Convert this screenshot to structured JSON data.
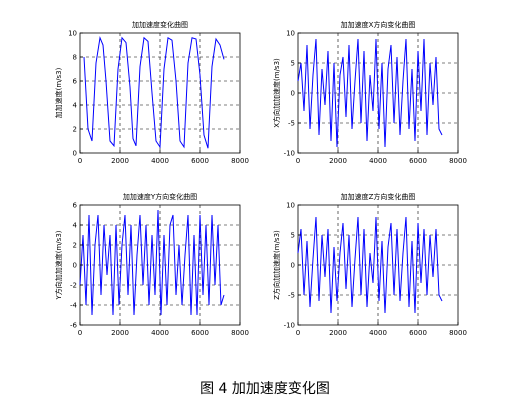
{
  "caption": "图 4 加加速度变化图",
  "chart_data": [
    {
      "type": "line",
      "title": "加加速度变化曲图",
      "xlabel": "",
      "ylabel": "加加速度(m/s3)",
      "xlim": [
        0,
        8000
      ],
      "ylim": [
        0,
        10
      ],
      "xticks": [
        0,
        2000,
        4000,
        6000,
        8000
      ],
      "yticks": [
        0,
        2,
        4,
        6,
        8,
        10
      ],
      "grid": "dashed",
      "series": [
        {
          "color": "#0000ff",
          "x": [
            200,
            400,
            600,
            800,
            1000,
            1150,
            1300,
            1500,
            1700,
            1900,
            2100,
            2300,
            2500,
            2650,
            2800,
            3000,
            3200,
            3400,
            3600,
            3800,
            4000,
            4200,
            4400,
            4600,
            4800,
            5000,
            5200,
            5400,
            5600,
            5800,
            6000,
            6200,
            6400,
            6600,
            6800,
            7000,
            7200
          ],
          "y": [
            8.0,
            2.0,
            1.0,
            7.5,
            9.6,
            9.0,
            6.0,
            1.0,
            0.6,
            7.0,
            9.6,
            9.2,
            5.5,
            1.2,
            0.6,
            7.2,
            9.6,
            9.3,
            5.0,
            1.0,
            0.5,
            7.0,
            9.6,
            9.4,
            6.0,
            1.0,
            0.5,
            7.5,
            9.6,
            9.5,
            6.5,
            1.5,
            0.4,
            7.2,
            9.5,
            9.0,
            7.8
          ]
        }
      ]
    },
    {
      "type": "line",
      "title": "加加速度X方向变化曲图",
      "xlabel": "",
      "ylabel": "X方向加加速度(m/s3)",
      "xlim": [
        0,
        8000
      ],
      "ylim": [
        -10,
        10
      ],
      "xticks": [
        0,
        2000,
        4000,
        6000,
        8000
      ],
      "yticks": [
        -10,
        -5,
        0,
        5,
        10
      ],
      "grid": "dashed",
      "series": [
        {
          "color": "#0000ff",
          "x": [
            0,
            150,
            300,
            450,
            600,
            750,
            900,
            1050,
            1200,
            1350,
            1500,
            1650,
            1800,
            1950,
            2100,
            2250,
            2400,
            2550,
            2700,
            2850,
            3000,
            3150,
            3300,
            3450,
            3600,
            3750,
            3900,
            4050,
            4200,
            4350,
            4500,
            4650,
            4800,
            4950,
            5100,
            5250,
            5400,
            5550,
            5700,
            5850,
            6000,
            6150,
            6300,
            6450,
            6600,
            6750,
            6900,
            7050,
            7200
          ],
          "y": [
            2,
            5,
            -3,
            8,
            -6,
            3,
            9,
            -7,
            4,
            -2,
            7,
            -8,
            5,
            -9,
            3,
            6,
            -4,
            8,
            -6,
            2,
            9,
            -5,
            7,
            -8,
            3,
            -3,
            9,
            -6,
            5,
            -9,
            4,
            8,
            -5,
            6,
            -7,
            2,
            9,
            -6,
            4,
            -8,
            7,
            -3,
            9,
            -7,
            5,
            -2,
            6,
            -6,
            -7
          ]
        }
      ]
    },
    {
      "type": "line",
      "title": "加加速度Y方向变化曲图",
      "xlabel": "",
      "ylabel": "Y方向加加速度(m/s3)",
      "xlim": [
        0,
        8000
      ],
      "ylim": [
        -6,
        6
      ],
      "xticks": [
        0,
        2000,
        4000,
        6000,
        8000
      ],
      "yticks": [
        -6,
        -4,
        -2,
        0,
        2,
        4,
        6
      ],
      "grid": "dashed",
      "series": [
        {
          "color": "#0000ff",
          "x": [
            0,
            150,
            300,
            450,
            600,
            750,
            900,
            1050,
            1200,
            1350,
            1500,
            1650,
            1800,
            1950,
            2100,
            2250,
            2400,
            2550,
            2700,
            2850,
            3000,
            3150,
            3300,
            3450,
            3600,
            3750,
            3900,
            4050,
            4200,
            4350,
            4500,
            4650,
            4800,
            4950,
            5100,
            5250,
            5400,
            5550,
            5700,
            5850,
            6000,
            6150,
            6300,
            6450,
            6600,
            6750,
            6900,
            7050,
            7200
          ],
          "y": [
            -2,
            3,
            -4,
            5,
            -5,
            2,
            5,
            -3,
            4,
            -1,
            3,
            -5,
            4,
            -4,
            2,
            5,
            -3,
            4,
            -5,
            1,
            5,
            -2,
            4,
            -4,
            3,
            -3,
            5.5,
            -5,
            3,
            -4,
            4,
            5,
            -3,
            2,
            -4,
            1,
            5,
            -5,
            3,
            -5,
            5,
            -3,
            4,
            -4,
            5,
            -2,
            4,
            -4,
            -3
          ]
        }
      ]
    },
    {
      "type": "line",
      "title": "加加速度Z方向变化曲图",
      "xlabel": "",
      "ylabel": "Z方向加加速度(m/s3)",
      "xlim": [
        0,
        8000
      ],
      "ylim": [
        -10,
        10
      ],
      "xticks": [
        0,
        2000,
        4000,
        6000,
        8000
      ],
      "yticks": [
        -10,
        -5,
        0,
        5,
        10
      ],
      "grid": "dashed",
      "series": [
        {
          "color": "#0000ff",
          "x": [
            0,
            150,
            300,
            450,
            600,
            750,
            900,
            1050,
            1200,
            1350,
            1500,
            1650,
            1800,
            1950,
            2100,
            2250,
            2400,
            2550,
            2700,
            2850,
            3000,
            3150,
            3300,
            3450,
            3600,
            3750,
            3900,
            4050,
            4200,
            4350,
            4500,
            4650,
            4800,
            4950,
            5100,
            5250,
            5400,
            5550,
            5700,
            5850,
            6000,
            6150,
            6300,
            6450,
            6600,
            6750,
            6900,
            7050,
            7200
          ],
          "y": [
            2,
            6,
            -5,
            4,
            -7,
            1,
            8,
            -6,
            5,
            -2,
            6,
            -8,
            3,
            -6,
            2,
            7,
            -4,
            5,
            -7,
            1,
            8,
            -5,
            6,
            -7,
            2,
            -3,
            8,
            -6,
            4,
            -8,
            3,
            7,
            -5,
            6,
            -6,
            2,
            8,
            -7,
            4,
            -8,
            7,
            -3,
            6,
            -5,
            5,
            -2,
            6,
            -5,
            -6
          ]
        }
      ]
    }
  ]
}
